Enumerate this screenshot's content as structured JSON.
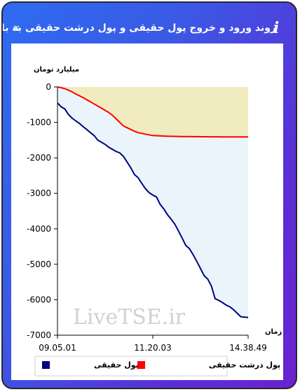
{
  "header": {
    "title": "روند ورود و خروج پول حقیقی و پول درشت حقیقی به بازار",
    "info_icon": "info-icon",
    "link_icon": "link-icon"
  },
  "chart_data": {
    "type": "line",
    "ylabel": "میلیارد تومان",
    "xlabel": "زمان",
    "x_ticks": [
      "09.05.01",
      "11.20.03",
      "14.38.49"
    ],
    "y_ticks": [
      0,
      -1000,
      -2000,
      -3000,
      -4000,
      -5000,
      -6000,
      -7000
    ],
    "ylim": [
      -7000,
      0
    ],
    "watermark": "LiveTSE.ir",
    "series": [
      {
        "name": "پول حقیقی",
        "color": "#000080",
        "fill": "#eaf4fb",
        "values": [
          -450,
          -560,
          -620,
          -780,
          -880,
          -960,
          -1030,
          -1120,
          -1200,
          -1290,
          -1370,
          -1500,
          -1560,
          -1620,
          -1700,
          -1760,
          -1820,
          -1860,
          -1960,
          -2120,
          -2280,
          -2470,
          -2560,
          -2720,
          -2870,
          -2980,
          -3050,
          -3100,
          -3310,
          -3440,
          -3600,
          -3730,
          -3870,
          -4060,
          -4260,
          -4470,
          -4560,
          -4730,
          -4920,
          -5120,
          -5320,
          -5420,
          -5620,
          -5970,
          -6020,
          -6080,
          -6150,
          -6200,
          -6280,
          -6380,
          -6480,
          -6490,
          -6500
        ]
      },
      {
        "name": "پول درشت حقیقی",
        "color": "#ff0000",
        "fill": "#f0ecbf",
        "values": [
          0,
          -20,
          -50,
          -90,
          -140,
          -200,
          -250,
          -300,
          -360,
          -420,
          -480,
          -540,
          -600,
          -660,
          -720,
          -800,
          -900,
          -1000,
          -1100,
          -1150,
          -1200,
          -1250,
          -1290,
          -1310,
          -1330,
          -1350,
          -1370,
          -1375,
          -1380,
          -1385,
          -1390,
          -1392,
          -1394,
          -1396,
          -1398,
          -1400,
          -1400,
          -1401,
          -1402,
          -1403,
          -1404,
          -1405,
          -1405,
          -1406,
          -1406,
          -1407,
          -1407,
          -1408,
          -1408,
          -1409,
          -1409,
          -1410,
          -1410
        ]
      }
    ],
    "legend_position": "bottom"
  }
}
